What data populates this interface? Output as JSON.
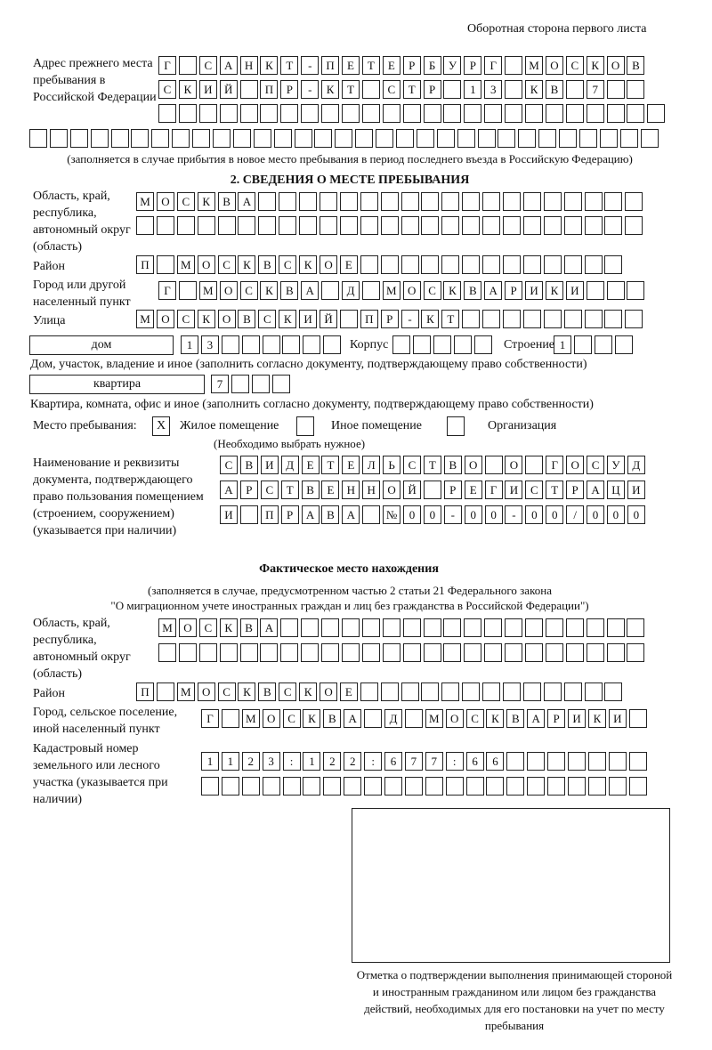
{
  "header": "Оборотная сторона первого листа",
  "prev_address": {
    "label": "Адрес прежнего места пребывания в Российской Федерации",
    "rows": [
      [
        "Г",
        " ",
        "С",
        "А",
        "Н",
        "К",
        "Т",
        "-",
        "П",
        "Е",
        "Т",
        "Е",
        "Р",
        "Б",
        "У",
        "Р",
        "Г",
        " ",
        "М",
        "О",
        "С",
        "К",
        "О",
        "В"
      ],
      [
        "С",
        "К",
        "И",
        "Й",
        " ",
        "П",
        "Р",
        "-",
        "К",
        "Т",
        " ",
        "С",
        "Т",
        "Р",
        " ",
        "1",
        "3",
        " ",
        "К",
        "В",
        " ",
        "7",
        " ",
        " "
      ],
      [
        " ",
        " ",
        " ",
        " ",
        " ",
        " ",
        " ",
        " ",
        " ",
        " ",
        " ",
        " ",
        " ",
        " ",
        " ",
        " ",
        " ",
        " ",
        " ",
        " ",
        " ",
        " ",
        " ",
        " ",
        " "
      ],
      [
        " ",
        " ",
        " ",
        " ",
        " ",
        " ",
        " ",
        " ",
        " ",
        " ",
        " ",
        " ",
        " ",
        " ",
        " ",
        " ",
        " ",
        " ",
        " ",
        " ",
        " ",
        " ",
        " ",
        " ",
        " ",
        " ",
        " ",
        " ",
        " ",
        " ",
        " "
      ]
    ],
    "note": "(заполняется в случае прибытия в новое место пребывания в период последнего въезда в Российскую Федерацию)"
  },
  "section2": {
    "title": "2. СВЕДЕНИЯ О МЕСТЕ ПРЕБЫВАНИЯ",
    "region_label": "Область, край, республика, автономный округ (область)",
    "region_rows": [
      [
        "М",
        "О",
        "С",
        "К",
        "В",
        "А",
        " ",
        " ",
        " ",
        " ",
        " ",
        " ",
        " ",
        " ",
        " ",
        " ",
        " ",
        " ",
        " ",
        " ",
        " ",
        " ",
        " ",
        " ",
        " "
      ],
      [
        " ",
        " ",
        " ",
        " ",
        " ",
        " ",
        " ",
        " ",
        " ",
        " ",
        " ",
        " ",
        " ",
        " ",
        " ",
        " ",
        " ",
        " ",
        " ",
        " ",
        " ",
        " ",
        " ",
        " ",
        " "
      ]
    ],
    "district_label": "Район",
    "district": [
      "П",
      " ",
      "М",
      "О",
      "С",
      "К",
      "В",
      "С",
      "К",
      "О",
      "Е",
      " ",
      " ",
      " ",
      " ",
      " ",
      " ",
      " ",
      " ",
      " ",
      " ",
      " ",
      " ",
      " "
    ],
    "city_label": "Город или другой населенный пункт",
    "city": [
      "Г",
      " ",
      "М",
      "О",
      "С",
      "К",
      "В",
      "А",
      " ",
      "Д",
      " ",
      "М",
      "О",
      "С",
      "К",
      "В",
      "А",
      "Р",
      "И",
      "К",
      "И",
      " ",
      " ",
      " "
    ],
    "street_label": "Улица",
    "street": [
      "М",
      "О",
      "С",
      "К",
      "О",
      "В",
      "С",
      "К",
      "И",
      "Й",
      " ",
      "П",
      "Р",
      "-",
      "К",
      "Т",
      " ",
      " ",
      " ",
      " ",
      " ",
      " ",
      " ",
      " ",
      " "
    ],
    "house_type": "дом",
    "house": [
      "1",
      "3",
      " ",
      " ",
      " ",
      " ",
      " ",
      " "
    ],
    "korpus_label": "Корпус",
    "korpus": [
      " ",
      " ",
      " ",
      " ",
      " "
    ],
    "building_label": "Строение",
    "building": [
      "1",
      " ",
      " ",
      " "
    ],
    "house_note": "Дом, участок, владение и иное (заполнить согласно документу, подтверждающему право собственности)",
    "flat_type": "квартира",
    "flat": [
      "7",
      " ",
      " ",
      " "
    ],
    "flat_note": "Квартира, комната, офис и иное (заполнить согласно документу, подтверждающему право собственности)",
    "stay_label": "Место пребывания:",
    "options": [
      {
        "label": "Жилое помещение",
        "mark": "X"
      },
      {
        "label": "Иное помещение",
        "mark": ""
      },
      {
        "label": "Организация",
        "mark": ""
      }
    ],
    "options_note": "(Необходимо выбрать нужное)",
    "doc_label": "Наименование и реквизиты документа, подтверждающего право пользования помещением (строением, сооружением) (указывается при наличии)",
    "doc_rows": [
      [
        "С",
        "В",
        "И",
        "Д",
        "Е",
        "Т",
        "Е",
        "Л",
        "Ь",
        "С",
        "Т",
        "В",
        "О",
        " ",
        "О",
        " ",
        "Г",
        "О",
        "С",
        "У",
        "Д"
      ],
      [
        "А",
        "Р",
        "С",
        "Т",
        "В",
        "Е",
        "Н",
        "Н",
        "О",
        "Й",
        " ",
        "Р",
        "Е",
        "Г",
        "И",
        "С",
        "Т",
        "Р",
        "А",
        "Ц",
        "И"
      ],
      [
        "И",
        " ",
        "П",
        "Р",
        "А",
        "В",
        "А",
        " ",
        "№",
        "0",
        "0",
        "-",
        "0",
        "0",
        "-",
        "0",
        "0",
        "/",
        "0",
        "0",
        "0"
      ]
    ]
  },
  "actual": {
    "title": "Фактическое место нахождения",
    "note1": "(заполняется в случае, предусмотренном частью 2 статьи 21 Федерального закона",
    "note2": "\"О миграционном учете иностранных граждан и лиц без гражданства в Российской Федерации\")",
    "region_label": "Область, край, республика, автономный округ (область)",
    "region_rows": [
      [
        "М",
        "О",
        "С",
        "К",
        "В",
        "А",
        " ",
        " ",
        " ",
        " ",
        " ",
        " ",
        " ",
        " ",
        " ",
        " ",
        " ",
        " ",
        " ",
        " ",
        " ",
        " ",
        " ",
        " "
      ],
      [
        " ",
        " ",
        " ",
        " ",
        " ",
        " ",
        " ",
        " ",
        " ",
        " ",
        " ",
        " ",
        " ",
        " ",
        " ",
        " ",
        " ",
        " ",
        " ",
        " ",
        " ",
        " ",
        " ",
        " "
      ]
    ],
    "district_label": "Район",
    "district": [
      "П",
      " ",
      "М",
      "О",
      "С",
      "К",
      "В",
      "С",
      "К",
      "О",
      "Е",
      " ",
      " ",
      " ",
      " ",
      " ",
      " ",
      " ",
      " ",
      " ",
      " ",
      " ",
      " ",
      " "
    ],
    "city_label": "Город, сельское поселение, иной населенный пункт",
    "city": [
      "Г",
      " ",
      "М",
      "О",
      "С",
      "К",
      "В",
      "А",
      " ",
      "Д",
      " ",
      "М",
      "О",
      "С",
      "К",
      "В",
      "А",
      "Р",
      "И",
      "К",
      "И",
      " "
    ],
    "cadastre_label": "Кадастровый номер земельного или лесного участка (указывается при наличии)",
    "cadastre_rows": [
      [
        "1",
        "1",
        "2",
        "3",
        ":",
        "1",
        "2",
        "2",
        ":",
        "6",
        "7",
        "7",
        ":",
        "6",
        "6",
        " ",
        " ",
        " ",
        " ",
        " ",
        " ",
        " "
      ],
      [
        " ",
        " ",
        " ",
        " ",
        " ",
        " ",
        " ",
        " ",
        " ",
        " ",
        " ",
        " ",
        " ",
        " ",
        " ",
        " ",
        " ",
        " ",
        " ",
        " ",
        " ",
        " "
      ]
    ],
    "stamp_caption": "Отметка о подтверждении выполнения принимающей стороной и иностранным гражданином или лицом без гражданства действий, необходимых для его постановки на учет по месту пребывания"
  }
}
